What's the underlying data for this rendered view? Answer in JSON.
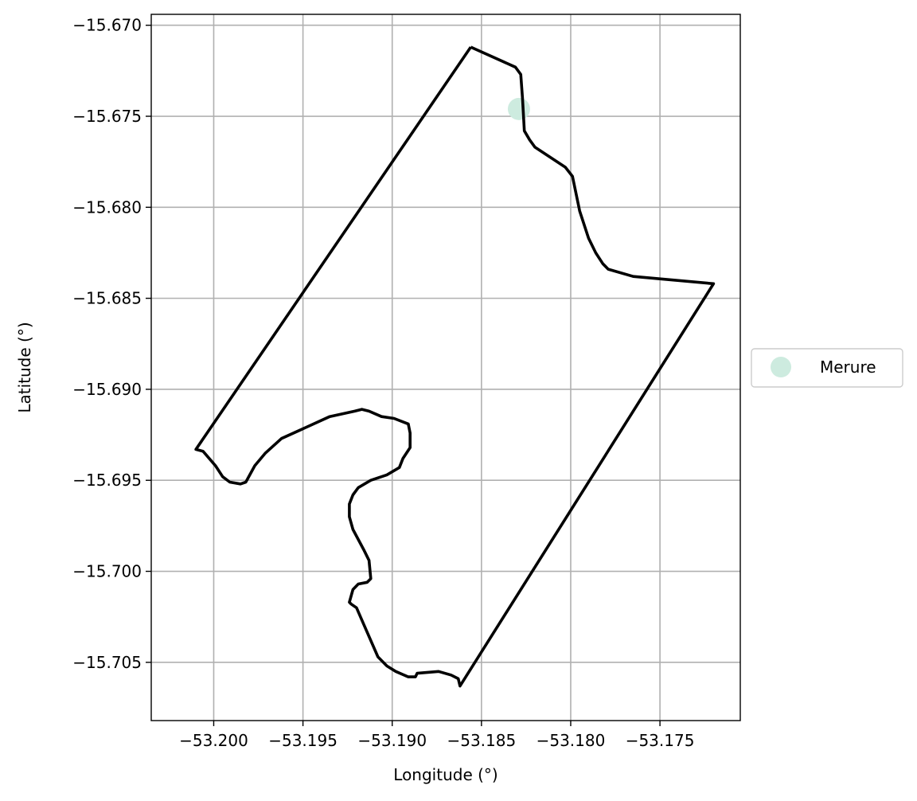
{
  "chart_data": {
    "type": "map",
    "title": "",
    "xlabel": "Longitude (°)",
    "ylabel": "Latitude (°)",
    "xlim": [
      -53.2035,
      -53.1705
    ],
    "ylim": [
      -15.7082,
      -15.6694
    ],
    "grid": true,
    "legend_placement": "center-right outside axes",
    "x_ticks": [
      -53.2,
      -53.195,
      -53.19,
      -53.185,
      -53.18,
      -53.175
    ],
    "x_tick_labels": [
      "−53.200",
      "−53.195",
      "−53.190",
      "−53.185",
      "−53.180",
      "−53.175"
    ],
    "y_ticks": [
      -15.67,
      -15.675,
      -15.68,
      -15.685,
      -15.69,
      -15.695,
      -15.7,
      -15.705
    ],
    "y_tick_labels": [
      "−15.670",
      "−15.675",
      "−15.680",
      "−15.685",
      "−15.690",
      "−15.695",
      "−15.700",
      "−15.705"
    ],
    "series": [
      {
        "name": "Merure",
        "kind": "point",
        "color": "#cdebdf",
        "points": [
          [
            -53.1829,
            -15.6746
          ]
        ]
      },
      {
        "kind": "boundary",
        "color": "#000000",
        "points": [
          [
            -53.1856,
            -15.6712
          ],
          [
            -53.1831,
            -15.6723
          ],
          [
            -53.1828,
            -15.6727
          ],
          [
            -53.1827,
            -15.674
          ],
          [
            -53.1826,
            -15.6758
          ],
          [
            -53.1823,
            -15.6763
          ],
          [
            -53.182,
            -15.6767
          ],
          [
            -53.1803,
            -15.6778
          ],
          [
            -53.1799,
            -15.6783
          ],
          [
            -53.1795,
            -15.6802
          ],
          [
            -53.179,
            -15.6817
          ],
          [
            -53.1786,
            -15.6825
          ],
          [
            -53.1782,
            -15.6831
          ],
          [
            -53.1779,
            -15.6834
          ],
          [
            -53.1765,
            -15.6838
          ],
          [
            -53.172,
            -15.6842
          ],
          [
            -53.1862,
            -15.7063
          ],
          [
            -53.1863,
            -15.7059
          ],
          [
            -53.1867,
            -15.7057
          ],
          [
            -53.1874,
            -15.7055
          ],
          [
            -53.1886,
            -15.7056
          ],
          [
            -53.1887,
            -15.7058
          ],
          [
            -53.1891,
            -15.7058
          ],
          [
            -53.1898,
            -15.7055
          ],
          [
            -53.1903,
            -15.7052
          ],
          [
            -53.1908,
            -15.7047
          ],
          [
            -53.1916,
            -15.7029
          ],
          [
            -53.192,
            -15.702
          ],
          [
            -53.1923,
            -15.7018
          ],
          [
            -53.1924,
            -15.7017
          ],
          [
            -53.1922,
            -15.701
          ],
          [
            -53.1919,
            -15.7007
          ],
          [
            -53.1914,
            -15.7006
          ],
          [
            -53.1912,
            -15.7004
          ],
          [
            -53.1913,
            -15.6994
          ],
          [
            -53.1916,
            -15.6988
          ],
          [
            -53.1922,
            -15.6977
          ],
          [
            -53.1924,
            -15.697
          ],
          [
            -53.1924,
            -15.6963
          ],
          [
            -53.1922,
            -15.6958
          ],
          [
            -53.1919,
            -15.6954
          ],
          [
            -53.1912,
            -15.695
          ],
          [
            -53.1903,
            -15.6947
          ],
          [
            -53.1896,
            -15.6943
          ],
          [
            -53.1894,
            -15.6938
          ],
          [
            -53.189,
            -15.6932
          ],
          [
            -53.189,
            -15.6924
          ],
          [
            -53.1891,
            -15.6919
          ],
          [
            -53.1899,
            -15.6916
          ],
          [
            -53.1906,
            -15.6915
          ],
          [
            -53.1913,
            -15.6912
          ],
          [
            -53.1917,
            -15.6911
          ],
          [
            -53.1921,
            -15.6912
          ],
          [
            -53.1935,
            -15.6915
          ],
          [
            -53.1962,
            -15.6927
          ],
          [
            -53.1971,
            -15.6935
          ],
          [
            -53.1977,
            -15.6942
          ],
          [
            -53.1982,
            -15.6951
          ],
          [
            -53.1985,
            -15.6952
          ],
          [
            -53.1991,
            -15.6951
          ],
          [
            -53.1995,
            -15.6948
          ],
          [
            -53.1999,
            -15.6942
          ],
          [
            -53.2006,
            -15.6934
          ],
          [
            -53.201,
            -15.6933
          ],
          [
            -53.1856,
            -15.6712
          ]
        ]
      }
    ]
  }
}
